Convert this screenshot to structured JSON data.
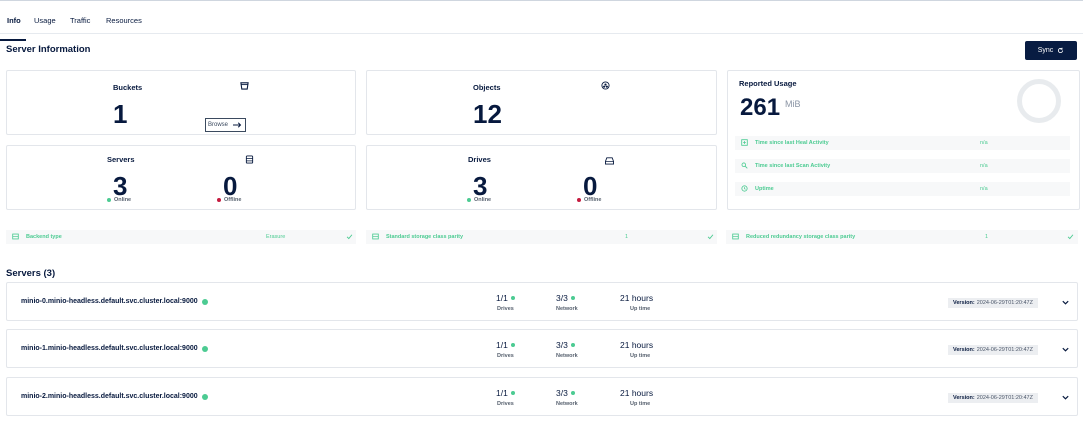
{
  "tabs": [
    {
      "label": "Info"
    },
    {
      "label": "Usage"
    },
    {
      "label": "Traffic"
    },
    {
      "label": "Resources"
    }
  ],
  "server_info": {
    "title": "Server Information",
    "sync_label": "Sync"
  },
  "cards": {
    "buckets": {
      "title": "Buckets",
      "value": "1",
      "browse_label": "Browse"
    },
    "objects": {
      "title": "Objects",
      "value": "12"
    },
    "servers": {
      "title": "Servers",
      "online": "3",
      "online_label": "Online",
      "offline": "0",
      "offline_label": "Offline"
    },
    "drives": {
      "title": "Drives",
      "online": "3",
      "online_label": "Online",
      "offline": "0",
      "offline_label": "Offline"
    }
  },
  "usage": {
    "title": "Reported Usage",
    "value": "261",
    "unit": "MiB",
    "rows": [
      {
        "label": "Time since last Heal Activity",
        "value": "n/a"
      },
      {
        "label": "Time since last Scan Activity",
        "value": "n/a"
      },
      {
        "label": "Uptime",
        "value": "n/a"
      }
    ]
  },
  "properties": [
    {
      "label": "Backend type",
      "value": "Erasure"
    },
    {
      "label": "Standard storage class parity",
      "value": "1"
    },
    {
      "label": "Reduced redundancy storage class parity",
      "value": "1"
    }
  ],
  "servers_section": {
    "title": "Servers (3)",
    "drives_label": "Drives",
    "network_label": "Network",
    "uptime_label": "Up time",
    "version_label": "Version:",
    "list": [
      {
        "name": "minio-0.minio-headless.default.svc.cluster.local:9000",
        "drives": "1/1",
        "network": "3/3",
        "uptime": "21 hours",
        "version": "2024-06-29T01:20:47Z"
      },
      {
        "name": "minio-1.minio-headless.default.svc.cluster.local:9000",
        "drives": "1/1",
        "network": "3/3",
        "uptime": "21 hours",
        "version": "2024-06-29T01:20:47Z"
      },
      {
        "name": "minio-2.minio-headless.default.svc.cluster.local:9000",
        "drives": "1/1",
        "network": "3/3",
        "uptime": "21 hours",
        "version": "2024-06-29T01:20:47Z"
      }
    ]
  },
  "colors": {
    "primary": "#081c42",
    "online": "#4ccb92",
    "offline": "#c51b3f"
  }
}
